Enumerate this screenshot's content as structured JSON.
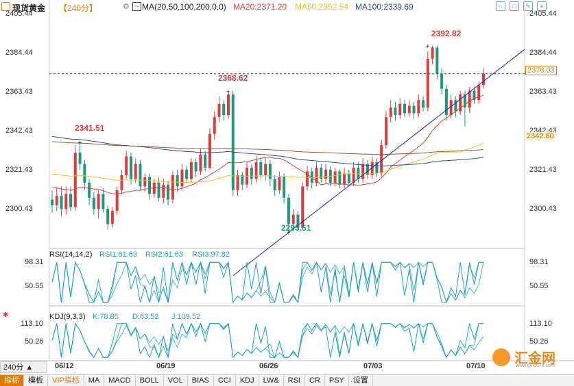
{
  "toolbar": {
    "title": "现货黄金",
    "period": "【240分】",
    "ma_label": "MA(20,50,100,200,0,0)",
    "ma20": "MA20:2371.20",
    "ma50": "MA50:2352.54",
    "ma100": "MA100:2339.69"
  },
  "rsi_panel": {
    "label": "RSI(14,14,2)",
    "rsi1": "RSI1:61.63",
    "rsi2": "RSI2:61.63",
    "rsi3": "RSI3:97.82"
  },
  "kdj_panel": {
    "label": "KDJ(9,3,3)",
    "k": "K:78.85",
    "d": "D:63.52",
    "j": "J:109.52"
  },
  "price_axis": [
    "2405.44",
    "2384.44",
    "2363.43",
    "2342.43",
    "2321.43",
    "2300.43"
  ],
  "rsi_axis": [
    "98.31",
    "50.55"
  ],
  "kdj_axis": [
    "113.10",
    "50.26"
  ],
  "annotations": {
    "high1": "2341.51",
    "high2": "2368.62",
    "low1": "2293.51",
    "high3": "2392.82"
  },
  "price_tags": {
    "current": "2378.03",
    "ma_level": "2342.80"
  },
  "dates": [
    "06/12",
    "06/19",
    "06/26",
    "07/03",
    "07/10"
  ],
  "period_button": "240分 ▲",
  "bottom_tabs": [
    "指标",
    "模板",
    "VIP指标",
    "MA",
    "MACD",
    "BOLL",
    "VOL",
    "BIAS",
    "CCI",
    "KDJ",
    "LW&",
    "RSI",
    "CR",
    "PSY",
    "设置"
  ],
  "watermark": {
    "name": "汇金网",
    "site": "www.gold678.com"
  },
  "colors": {
    "up": "#e03c3c",
    "down": "#1a9a7a",
    "ma20": "#e03c3c",
    "ma50": "#f0c419",
    "ma100": "#2c4aa0",
    "ma200": "#a0522d",
    "trend": "#2222aa",
    "rsi": "#1aa3c0",
    "accent": "#e07b00"
  },
  "chart_data": {
    "type": "candlestick",
    "title": "现货黄金 240分",
    "ylim": [
      2285,
      2410
    ],
    "x_range": [
      "06/11",
      "07/10"
    ],
    "annotations": [
      {
        "label": "2341.51",
        "value": 2341.51
      },
      {
        "label": "2368.62",
        "value": 2368.62
      },
      {
        "label": "2293.51",
        "value": 2293.51
      },
      {
        "label": "2392.82",
        "value": 2392.82
      }
    ],
    "last_price": 2378.03,
    "moving_averages": [
      {
        "name": "MA20",
        "last": 2371.2
      },
      {
        "name": "MA50",
        "last": 2352.54
      },
      {
        "name": "MA100",
        "last": 2339.69
      }
    ],
    "candles": [
      [
        2311,
        2308,
        2316,
        2304
      ],
      [
        2308,
        2313,
        2317,
        2305
      ],
      [
        2313,
        2306,
        2318,
        2302
      ],
      [
        2306,
        2314,
        2318,
        2303
      ],
      [
        2314,
        2307,
        2318,
        2305
      ],
      [
        2307,
        2336,
        2340,
        2305
      ],
      [
        2336,
        2330,
        2341.5,
        2327
      ],
      [
        2330,
        2320,
        2332,
        2316
      ],
      [
        2320,
        2312,
        2322,
        2308
      ],
      [
        2312,
        2306,
        2315,
        2303
      ],
      [
        2306,
        2314,
        2316,
        2301
      ],
      [
        2314,
        2306,
        2317,
        2304
      ],
      [
        2306,
        2298,
        2308,
        2295
      ],
      [
        2298,
        2305,
        2307,
        2296
      ],
      [
        2305,
        2316,
        2318,
        2303
      ],
      [
        2316,
        2324,
        2327,
        2314
      ],
      [
        2324,
        2334,
        2337,
        2322
      ],
      [
        2334,
        2322,
        2336,
        2319
      ],
      [
        2322,
        2330,
        2333,
        2320
      ],
      [
        2330,
        2318,
        2332,
        2316
      ],
      [
        2318,
        2323,
        2325,
        2315
      ],
      [
        2323,
        2314,
        2325,
        2311
      ],
      [
        2314,
        2320,
        2322,
        2312
      ],
      [
        2320,
        2312,
        2323,
        2310
      ],
      [
        2312,
        2319,
        2322,
        2309
      ],
      [
        2319,
        2311,
        2321,
        2308
      ],
      [
        2311,
        2324,
        2326,
        2309
      ],
      [
        2324,
        2318,
        2327,
        2315
      ],
      [
        2318,
        2327,
        2330,
        2316
      ],
      [
        2327,
        2322,
        2329,
        2320
      ],
      [
        2322,
        2331,
        2333,
        2320
      ],
      [
        2331,
        2326,
        2333,
        2323
      ],
      [
        2326,
        2335,
        2338,
        2324
      ],
      [
        2335,
        2328,
        2337,
        2326
      ],
      [
        2328,
        2346,
        2349,
        2327
      ],
      [
        2346,
        2355,
        2358,
        2343
      ],
      [
        2355,
        2362,
        2366,
        2352
      ],
      [
        2362,
        2356,
        2364,
        2353
      ],
      [
        2356,
        2367,
        2368.6,
        2354
      ],
      [
        2367,
        2316,
        2369,
        2313
      ],
      [
        2316,
        2324,
        2327,
        2313
      ],
      [
        2324,
        2319,
        2326,
        2316
      ],
      [
        2319,
        2328,
        2331,
        2317
      ],
      [
        2328,
        2322,
        2330,
        2319
      ],
      [
        2322,
        2331,
        2334,
        2320
      ],
      [
        2331,
        2324,
        2333,
        2322
      ],
      [
        2324,
        2330,
        2333,
        2321
      ],
      [
        2330,
        2322,
        2332,
        2318
      ],
      [
        2322,
        2316,
        2324,
        2313
      ],
      [
        2316,
        2323,
        2326,
        2314
      ],
      [
        2323,
        2312,
        2325,
        2309
      ],
      [
        2312,
        2298,
        2314,
        2293.5
      ],
      [
        2298,
        2303,
        2306,
        2294
      ],
      [
        2303,
        2296,
        2305,
        2294
      ],
      [
        2296,
        2318,
        2320,
        2295
      ],
      [
        2318,
        2326,
        2329,
        2316
      ],
      [
        2326,
        2320,
        2328,
        2317
      ],
      [
        2320,
        2328,
        2331,
        2318
      ],
      [
        2328,
        2322,
        2330,
        2320
      ],
      [
        2322,
        2327,
        2330,
        2320
      ],
      [
        2327,
        2320,
        2329,
        2318
      ],
      [
        2320,
        2326,
        2328,
        2318
      ],
      [
        2326,
        2319,
        2327,
        2317
      ],
      [
        2319,
        2325,
        2328,
        2317
      ],
      [
        2325,
        2320,
        2327,
        2318
      ],
      [
        2320,
        2328,
        2331,
        2318
      ],
      [
        2328,
        2322,
        2331,
        2320
      ],
      [
        2322,
        2330,
        2333,
        2320
      ],
      [
        2330,
        2324,
        2332,
        2322
      ],
      [
        2324,
        2331,
        2334,
        2322
      ],
      [
        2331,
        2325,
        2333,
        2323
      ],
      [
        2325,
        2340,
        2343,
        2323
      ],
      [
        2340,
        2355,
        2358,
        2338
      ],
      [
        2355,
        2360,
        2364,
        2352
      ],
      [
        2360,
        2356,
        2363,
        2353
      ],
      [
        2356,
        2362,
        2365,
        2354
      ],
      [
        2362,
        2357,
        2364,
        2355
      ],
      [
        2357,
        2361,
        2364,
        2355
      ],
      [
        2361,
        2357,
        2363,
        2354
      ],
      [
        2357,
        2364,
        2367,
        2355
      ],
      [
        2364,
        2360,
        2366,
        2358
      ],
      [
        2360,
        2386,
        2390,
        2358
      ],
      [
        2386,
        2392,
        2392.8,
        2383
      ],
      [
        2392,
        2378,
        2393,
        2375
      ],
      [
        2378,
        2370,
        2381,
        2367
      ],
      [
        2370,
        2356,
        2372,
        2353
      ],
      [
        2356,
        2364,
        2367,
        2354
      ],
      [
        2364,
        2358,
        2366,
        2355
      ],
      [
        2358,
        2367,
        2369,
        2356
      ],
      [
        2367,
        2360,
        2369,
        2350
      ],
      [
        2360,
        2369,
        2371,
        2357
      ],
      [
        2369,
        2364,
        2371,
        2362
      ],
      [
        2364,
        2372,
        2374,
        2362
      ],
      [
        2372,
        2378,
        2381,
        2370
      ]
    ],
    "trendline": [
      {
        "x": "06/25",
        "y": 2293.5
      },
      {
        "x": "07/10",
        "y": 2374
      }
    ]
  }
}
